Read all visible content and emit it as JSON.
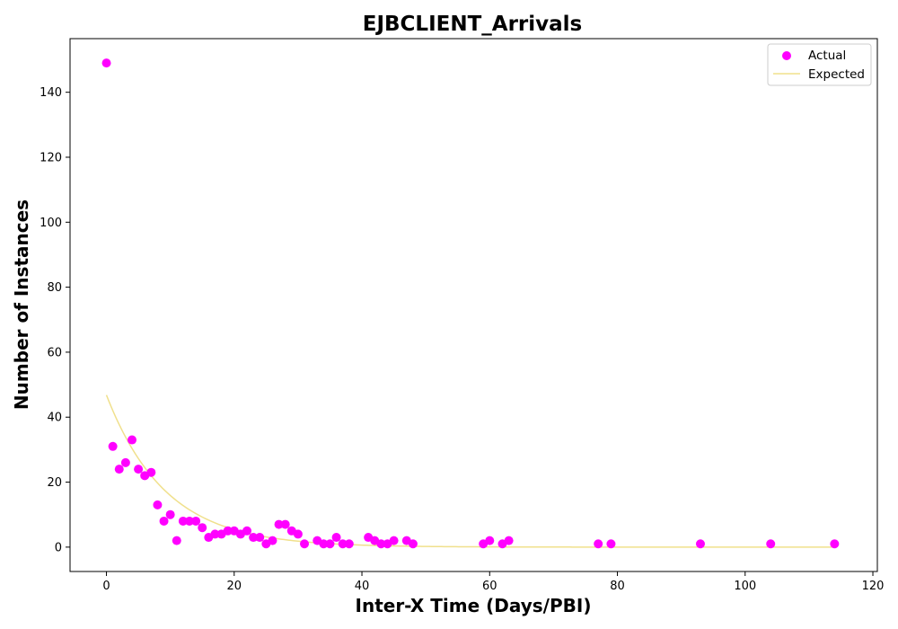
{
  "chart_data": {
    "type": "scatter",
    "title": "EJBCLIENT_Arrivals",
    "xlabel": "Inter-X Time (Days/PBI)",
    "ylabel": "Number of Instances",
    "xlim": [
      -5.7,
      120.7
    ],
    "ylim": [
      -7.5,
      156.5
    ],
    "xticks": [
      0,
      20,
      40,
      60,
      80,
      100,
      120
    ],
    "yticks": [
      0,
      20,
      40,
      60,
      80,
      100,
      120,
      140
    ],
    "grid": false,
    "legend": "top-right",
    "colors": {
      "actual": "#ff00ff",
      "expected": "#f0e08c"
    },
    "series": [
      {
        "name": "Actual",
        "kind": "scatter",
        "points": [
          [
            0,
            149
          ],
          [
            1,
            31
          ],
          [
            2,
            24
          ],
          [
            3,
            26
          ],
          [
            4,
            33
          ],
          [
            5,
            24
          ],
          [
            6,
            22
          ],
          [
            7,
            23
          ],
          [
            8,
            13
          ],
          [
            9,
            8
          ],
          [
            10,
            10
          ],
          [
            11,
            2
          ],
          [
            12,
            8
          ],
          [
            13,
            8
          ],
          [
            14,
            8
          ],
          [
            15,
            6
          ],
          [
            16,
            3
          ],
          [
            17,
            4
          ],
          [
            18,
            4
          ],
          [
            19,
            5
          ],
          [
            20,
            5
          ],
          [
            21,
            4
          ],
          [
            22,
            5
          ],
          [
            23,
            3
          ],
          [
            24,
            3
          ],
          [
            25,
            1
          ],
          [
            26,
            2
          ],
          [
            27,
            7
          ],
          [
            28,
            7
          ],
          [
            29,
            5
          ],
          [
            30,
            4
          ],
          [
            31,
            1
          ],
          [
            33,
            2
          ],
          [
            34,
            1
          ],
          [
            35,
            1
          ],
          [
            36,
            3
          ],
          [
            37,
            1
          ],
          [
            38,
            1
          ],
          [
            41,
            3
          ],
          [
            42,
            2
          ],
          [
            43,
            1
          ],
          [
            44,
            1
          ],
          [
            45,
            2
          ],
          [
            47,
            2
          ],
          [
            48,
            1
          ],
          [
            59,
            1
          ],
          [
            60,
            2
          ],
          [
            62,
            1
          ],
          [
            63,
            2
          ],
          [
            77,
            1
          ],
          [
            79,
            1
          ],
          [
            93,
            1
          ],
          [
            104,
            1
          ],
          [
            114,
            1
          ]
        ]
      },
      {
        "name": "Expected",
        "kind": "line",
        "model": "exponential",
        "a": 46.8,
        "b": 0.108,
        "x_start": 0,
        "x_end": 114
      }
    ]
  }
}
